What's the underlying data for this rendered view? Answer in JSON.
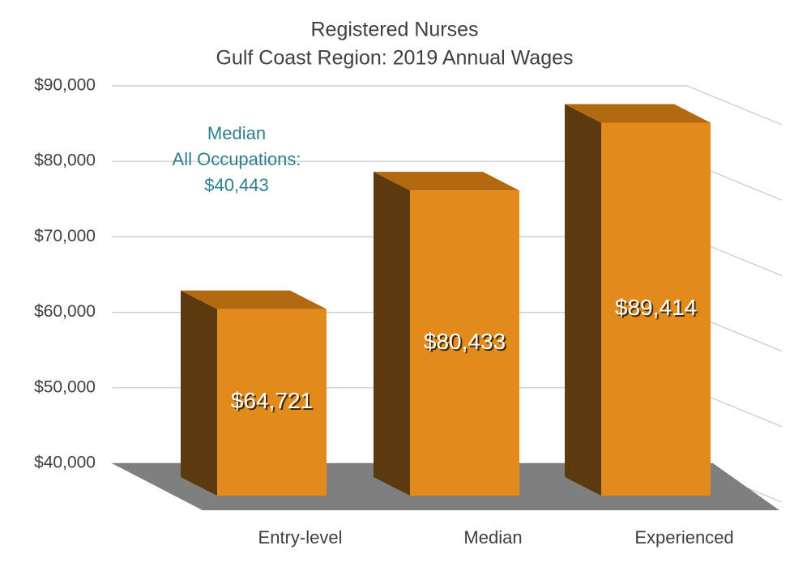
{
  "chart_data": {
    "type": "bar3d",
    "title": "Registered Nurses",
    "subtitle": "Gulf Coast Region: 2019 Annual Wages",
    "categories": [
      "Entry-level",
      "Median",
      "Experienced"
    ],
    "values": [
      64721,
      80433,
      89414
    ],
    "value_labels": [
      "$64,721",
      "$80,433",
      "$89,414"
    ],
    "color": "#e08b1b",
    "ylim": [
      40000,
      90000
    ],
    "yticks": [
      {
        "value": 40000,
        "label": "$40,000"
      },
      {
        "value": 50000,
        "label": "$50,000"
      },
      {
        "value": 60000,
        "label": "$60,000"
      },
      {
        "value": 70000,
        "label": "$70,000"
      },
      {
        "value": 80000,
        "label": "$80,000"
      },
      {
        "value": 90000,
        "label": "$90,000"
      }
    ],
    "grid": true,
    "annotation": [
      "Median",
      "All Occupations:",
      "$40,443"
    ]
  }
}
